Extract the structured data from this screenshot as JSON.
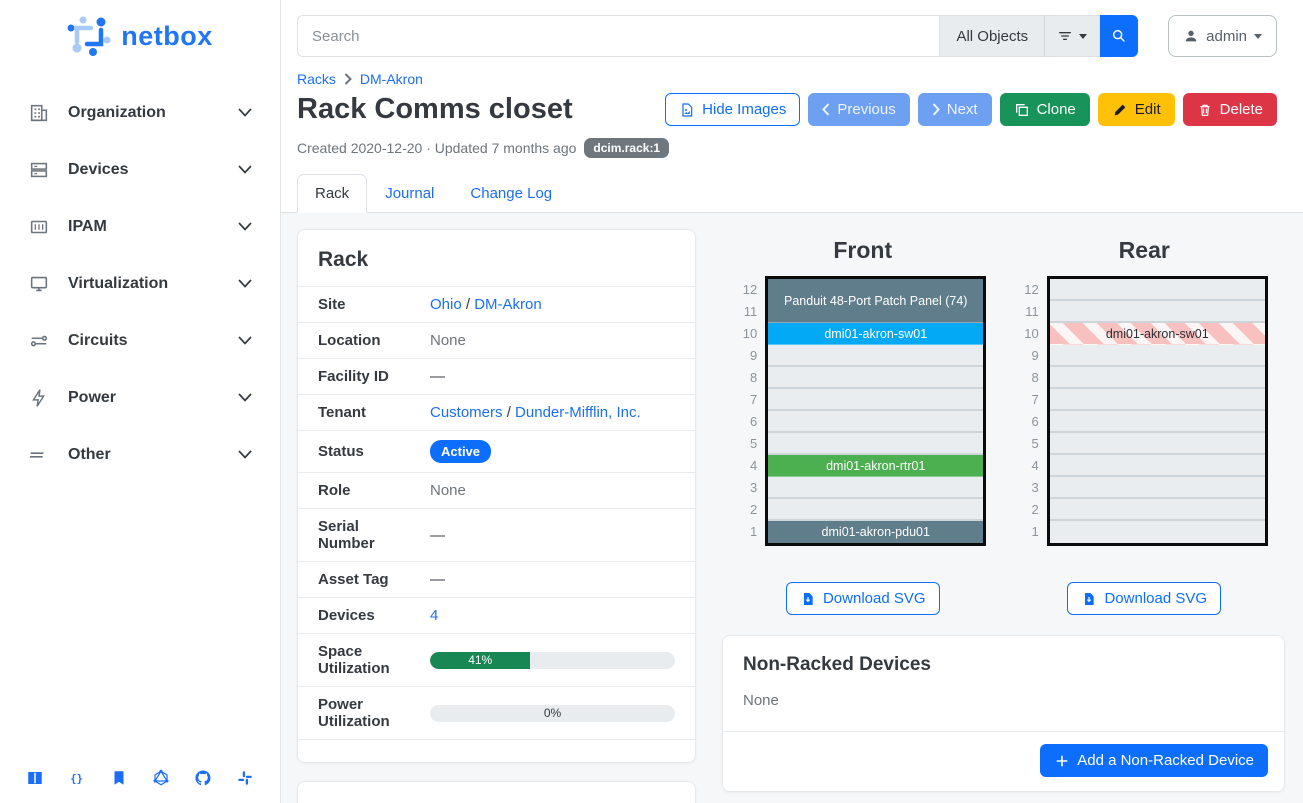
{
  "sidebar": {
    "logo_text": "netbox",
    "items": [
      {
        "icon": "organization-icon",
        "label": "Organization"
      },
      {
        "icon": "devices-icon",
        "label": "Devices"
      },
      {
        "icon": "ipam-icon",
        "label": "IPAM"
      },
      {
        "icon": "virtualization-icon",
        "label": "Virtualization"
      },
      {
        "icon": "circuits-icon",
        "label": "Circuits"
      },
      {
        "icon": "power-icon",
        "label": "Power"
      },
      {
        "icon": "other-icon",
        "label": "Other"
      }
    ]
  },
  "topbar": {
    "search_placeholder": "Search",
    "scope_label": "All Objects",
    "user": "admin"
  },
  "breadcrumb": {
    "items": [
      "Racks",
      "DM-Akron"
    ]
  },
  "page": {
    "title": "Rack Comms closet",
    "meta": "Created 2020-12-20 · Updated 7 months ago",
    "object_badge": "dcim.rack:1",
    "actions": {
      "hide_images": "Hide Images",
      "previous": "Previous",
      "next": "Next",
      "clone": "Clone",
      "edit": "Edit",
      "delete": "Delete"
    }
  },
  "tabs": {
    "items": [
      {
        "label": "Rack"
      },
      {
        "label": "Journal"
      },
      {
        "label": "Change Log"
      }
    ],
    "active": "Rack"
  },
  "rack_panel": {
    "title": "Rack",
    "link_separator": "/",
    "site": {
      "label": "Site",
      "links": [
        "Ohio",
        "DM-Akron"
      ]
    },
    "location": {
      "label": "Location",
      "value": "None"
    },
    "facility": {
      "label": "Facility ID",
      "value": "—"
    },
    "tenant": {
      "label": "Tenant",
      "links": [
        "Customers",
        "Dunder-Mifflin, Inc."
      ]
    },
    "status": {
      "label": "Status",
      "badge": "Active"
    },
    "role": {
      "label": "Role",
      "value": "None"
    },
    "serial": {
      "label": "Serial Number",
      "value": "—"
    },
    "asset_tag": {
      "label": "Asset Tag",
      "value": "—"
    },
    "devices": {
      "label": "Devices",
      "link": "4"
    },
    "space": {
      "label": "Space Utilization",
      "percent": 41,
      "text": "41%"
    },
    "power": {
      "label": "Power Utilization",
      "percent": 0,
      "text": "0%"
    }
  },
  "elevations": {
    "front": {
      "title": "Front",
      "download_label": "Download SVG",
      "units": [
        {
          "span": 2,
          "label": "Panduit 48-Port Patch Panel (74)",
          "color": "#607d8b",
          "text_color": "#ffffff"
        },
        {
          "span": 1,
          "label": "dmi01-akron-sw01",
          "color": "#03a9f4",
          "text_color": "#ffffff"
        },
        {
          "span": 1
        },
        {
          "span": 1
        },
        {
          "span": 1
        },
        {
          "span": 1
        },
        {
          "span": 1
        },
        {
          "span": 1,
          "label": "dmi01-akron-rtr01",
          "color": "#4caf50",
          "text_color": "#ffffff"
        },
        {
          "span": 1
        },
        {
          "span": 1
        },
        {
          "span": 1,
          "label": "dmi01-akron-pdu01",
          "color": "#607d8b",
          "text_color": "#ffffff"
        }
      ]
    },
    "rear": {
      "title": "Rear",
      "download_label": "Download SVG",
      "units": [
        {
          "span": 1
        },
        {
          "span": 1
        },
        {
          "span": 1,
          "label": "dmi01-akron-sw01",
          "striped": true
        },
        {
          "span": 1
        },
        {
          "span": 1
        },
        {
          "span": 1
        },
        {
          "span": 1
        },
        {
          "span": 1
        },
        {
          "span": 1
        },
        {
          "span": 1
        },
        {
          "span": 1
        },
        {
          "span": 1
        }
      ]
    }
  },
  "non_racked": {
    "title": "Non-Racked Devices",
    "empty_text": "None",
    "add_label": "Add a Non-Racked Device"
  },
  "colors": {
    "accent": "#0d6efd",
    "clone_green": "#18935a",
    "edit_yellow": "#ffc107",
    "delete_red": "#dc3545",
    "utilization_green": "#198754"
  }
}
